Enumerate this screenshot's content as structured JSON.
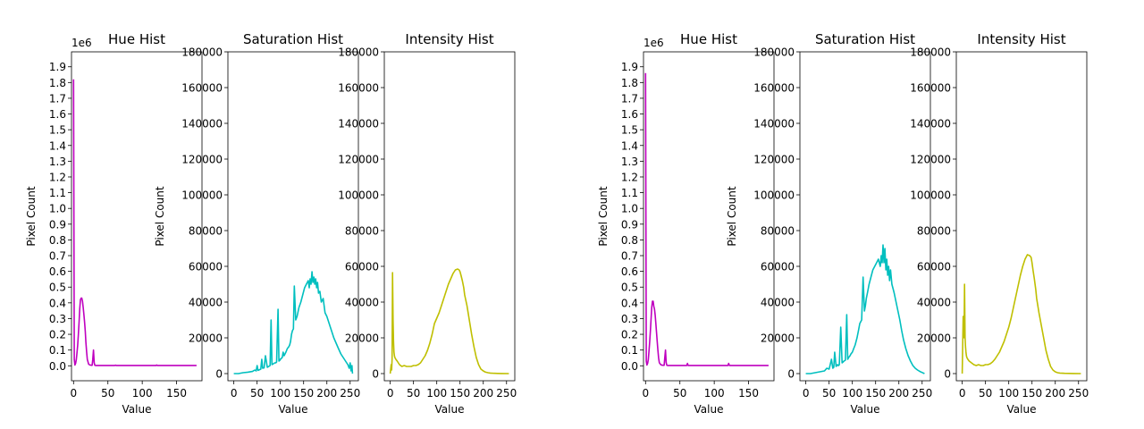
{
  "chart_data": [
    {
      "type": "line",
      "figure": "left",
      "title": "Hue Hist",
      "xlabel": "Value",
      "ylabel": "Pixel Count",
      "offset_text": "1e6",
      "xlim": [
        -3,
        187
      ],
      "ylim": [
        -0.095,
        1.995
      ],
      "xticks": [
        0,
        50,
        100,
        150
      ],
      "yticks": [
        0.0,
        0.1,
        0.2,
        0.3,
        0.4,
        0.5,
        0.6,
        0.7,
        0.8,
        0.9,
        1.0,
        1.1,
        1.2,
        1.3,
        1.4,
        1.5,
        1.6,
        1.7,
        1.8,
        1.9
      ],
      "ytick_labels": [
        "0.0",
        "0.1",
        "0.2",
        "0.3",
        "0.4",
        "0.5",
        "0.6",
        "0.7",
        "0.8",
        "0.9",
        "1.0",
        "1.1",
        "1.2",
        "1.3",
        "1.4",
        "1.5",
        "1.6",
        "1.7",
        "1.8",
        "1.9"
      ],
      "series": [
        {
          "color": "#bf00bf",
          "x": [
            0,
            1,
            2,
            3,
            4,
            5,
            6,
            7,
            8,
            9,
            10,
            11,
            12,
            13,
            14,
            15,
            16,
            17,
            18,
            19,
            20,
            22,
            24,
            26,
            27,
            28,
            29,
            30,
            31,
            32,
            35,
            40,
            60,
            61,
            62,
            80,
            100,
            120,
            121,
            122,
            150,
            179
          ],
          "y": [
            1.82,
            0.04,
            0.005,
            0.015,
            0.04,
            0.08,
            0.13,
            0.2,
            0.28,
            0.36,
            0.42,
            0.43,
            0.43,
            0.41,
            0.37,
            0.33,
            0.28,
            0.22,
            0.15,
            0.09,
            0.04,
            0.01,
            0.005,
            0.003,
            0.003,
            0.04,
            0.1,
            0.02,
            0.003,
            0.002,
            0.002,
            0.002,
            0.002,
            0.004,
            0.002,
            0.002,
            0.002,
            0.002,
            0.005,
            0.002,
            0.002,
            0.002
          ]
        }
      ]
    },
    {
      "type": "line",
      "figure": "left",
      "title": "Saturation Hist",
      "xlabel": "Value",
      "ylabel": "Pixel Count",
      "xlim": [
        -12.75,
        267.75
      ],
      "ylim": [
        -4000,
        180000
      ],
      "xticks": [
        0,
        50,
        100,
        150,
        200,
        250
      ],
      "yticks": [
        0,
        20000,
        40000,
        60000,
        80000,
        100000,
        120000,
        140000,
        160000,
        180000
      ],
      "ytick_labels": [
        "0",
        "20000",
        "40000",
        "60000",
        "80000",
        "100000",
        "120000",
        "140000",
        "160000",
        "180000"
      ],
      "series": [
        {
          "color": "#00bfbf",
          "x": [
            0,
            10,
            20,
            30,
            40,
            45,
            48,
            50,
            52,
            58,
            60,
            62,
            65,
            68,
            72,
            75,
            78,
            80,
            82,
            85,
            88,
            90,
            92,
            95,
            97,
            99,
            100,
            102,
            104,
            106,
            108,
            110,
            112,
            115,
            118,
            120,
            122,
            124,
            126,
            128,
            130,
            133,
            136,
            140,
            144,
            148,
            152,
            156,
            160,
            162,
            164,
            166,
            168,
            170,
            172,
            174,
            176,
            178,
            180,
            182,
            185,
            188,
            192,
            196,
            200,
            205,
            210,
            215,
            220,
            225,
            230,
            235,
            240,
            245,
            248,
            250,
            252,
            254,
            255
          ],
          "y": [
            0,
            0,
            500,
            800,
            1200,
            2000,
            1500,
            4500,
            1800,
            2500,
            8000,
            3000,
            3200,
            10000,
            3500,
            4000,
            4500,
            30000,
            5000,
            5500,
            6000,
            6000,
            6500,
            36000,
            7000,
            7500,
            8000,
            8500,
            9000,
            12000,
            10000,
            11000,
            12000,
            14000,
            15000,
            16000,
            18000,
            22000,
            24000,
            25000,
            49000,
            30000,
            32000,
            37000,
            40000,
            44000,
            48000,
            50000,
            52000,
            48000,
            53000,
            50000,
            57000,
            51000,
            54000,
            50000,
            53000,
            48000,
            51000,
            45000,
            46000,
            40000,
            42000,
            34000,
            32000,
            28000,
            24000,
            20000,
            17000,
            14000,
            11000,
            9000,
            7000,
            5000,
            3000,
            6000,
            1500,
            4500,
            0
          ]
        }
      ]
    },
    {
      "type": "line",
      "figure": "left",
      "title": "Intensity Hist",
      "xlabel": "Value",
      "xlim": [
        -12.75,
        267.75
      ],
      "ylim": [
        -4000,
        180000
      ],
      "xticks": [
        0,
        50,
        100,
        150,
        200,
        250
      ],
      "yticks": [
        0,
        20000,
        40000,
        60000,
        80000,
        100000,
        120000,
        140000,
        160000,
        180000
      ],
      "ytick_labels": [
        "0",
        "20000",
        "40000",
        "60000",
        "80000",
        "100000",
        "120000",
        "140000",
        "160000",
        "180000"
      ],
      "series": [
        {
          "color": "#bfbf00",
          "x": [
            0,
            2,
            3,
            4,
            5,
            6,
            7,
            8,
            9,
            10,
            12,
            15,
            20,
            25,
            30,
            35,
            40,
            45,
            50,
            55,
            60,
            65,
            70,
            75,
            80,
            85,
            90,
            95,
            100,
            105,
            110,
            115,
            120,
            125,
            130,
            135,
            140,
            145,
            148,
            150,
            152,
            155,
            158,
            160,
            165,
            170,
            175,
            180,
            185,
            190,
            195,
            200,
            205,
            210,
            215,
            220,
            230,
            240,
            255
          ],
          "y": [
            0,
            5000,
            2000,
            8000,
            56500,
            30000,
            18000,
            12000,
            10000,
            9000,
            8000,
            7000,
            5000,
            4000,
            4500,
            4000,
            4000,
            4000,
            4500,
            4500,
            5000,
            6000,
            8000,
            10000,
            13000,
            17000,
            22000,
            28000,
            31000,
            34000,
            38000,
            42000,
            46000,
            50000,
            53000,
            56000,
            58000,
            58500,
            58000,
            57000,
            55000,
            52000,
            48000,
            44000,
            38000,
            30000,
            22000,
            15000,
            9000,
            5000,
            2500,
            1500,
            800,
            500,
            300,
            200,
            100,
            50,
            0
          ]
        }
      ]
    },
    {
      "type": "line",
      "figure": "right",
      "title": "Hue Hist",
      "xlabel": "Value",
      "ylabel": "Pixel Count",
      "offset_text": "1e6",
      "xlim": [
        -3,
        187
      ],
      "ylim": [
        -0.095,
        1.995
      ],
      "xticks": [
        0,
        50,
        100,
        150
      ],
      "yticks": [
        0.0,
        0.1,
        0.2,
        0.3,
        0.4,
        0.5,
        0.6,
        0.7,
        0.8,
        0.9,
        1.0,
        1.1,
        1.2,
        1.3,
        1.4,
        1.5,
        1.6,
        1.7,
        1.8,
        1.9
      ],
      "ytick_labels": [
        "0.0",
        "0.1",
        "0.2",
        "0.3",
        "0.4",
        "0.5",
        "0.6",
        "0.7",
        "0.8",
        "0.9",
        "1.0",
        "1.1",
        "1.2",
        "1.3",
        "1.4",
        "1.5",
        "1.6",
        "1.7",
        "1.8",
        "1.9"
      ],
      "series": [
        {
          "color": "#bf00bf",
          "x": [
            0,
            1,
            2,
            3,
            4,
            5,
            6,
            7,
            8,
            9,
            10,
            11,
            12,
            13,
            14,
            15,
            16,
            17,
            18,
            19,
            20,
            22,
            24,
            26,
            27,
            28,
            29,
            30,
            31,
            32,
            35,
            40,
            60,
            61,
            62,
            80,
            100,
            120,
            121,
            122,
            150,
            179
          ],
          "y": [
            1.86,
            0.03,
            0.005,
            0.015,
            0.04,
            0.09,
            0.15,
            0.22,
            0.3,
            0.37,
            0.41,
            0.41,
            0.38,
            0.36,
            0.32,
            0.27,
            0.21,
            0.15,
            0.1,
            0.05,
            0.02,
            0.008,
            0.004,
            0.003,
            0.003,
            0.05,
            0.1,
            0.02,
            0.003,
            0.002,
            0.002,
            0.002,
            0.002,
            0.015,
            0.002,
            0.002,
            0.002,
            0.002,
            0.015,
            0.002,
            0.002,
            0.002
          ]
        }
      ]
    },
    {
      "type": "line",
      "figure": "right",
      "title": "Saturation Hist",
      "xlabel": "Value",
      "ylabel": "Pixel Count",
      "xlim": [
        -12.75,
        267.75
      ],
      "ylim": [
        -4000,
        180000
      ],
      "xticks": [
        0,
        50,
        100,
        150,
        200,
        250
      ],
      "yticks": [
        0,
        20000,
        40000,
        60000,
        80000,
        100000,
        120000,
        140000,
        160000,
        180000
      ],
      "ytick_labels": [
        "0",
        "20000",
        "40000",
        "60000",
        "80000",
        "100000",
        "120000",
        "140000",
        "160000",
        "180000"
      ],
      "series": [
        {
          "color": "#00bfbf",
          "x": [
            0,
            10,
            20,
            30,
            40,
            45,
            50,
            55,
            58,
            60,
            62,
            65,
            68,
            70,
            72,
            75,
            78,
            80,
            82,
            85,
            88,
            90,
            92,
            95,
            97,
            100,
            103,
            106,
            110,
            113,
            116,
            120,
            123,
            126,
            128,
            130,
            133,
            136,
            140,
            144,
            148,
            152,
            156,
            160,
            162,
            164,
            166,
            168,
            170,
            172,
            174,
            176,
            178,
            180,
            182,
            185,
            188,
            190,
            194,
            198,
            202,
            206,
            210,
            215,
            220,
            225,
            230,
            235,
            240,
            245,
            250,
            255
          ],
          "y": [
            0,
            0,
            500,
            1000,
            1500,
            3000,
            2500,
            8000,
            3000,
            3500,
            12000,
            4000,
            5000,
            4500,
            5000,
            26000,
            6000,
            6500,
            7000,
            7500,
            33000,
            8000,
            9000,
            10000,
            11000,
            12000,
            14000,
            16000,
            20000,
            24000,
            28000,
            30000,
            54000,
            35000,
            38000,
            42000,
            46000,
            50000,
            54000,
            58000,
            60000,
            62000,
            64000,
            60000,
            66000,
            62000,
            72000,
            62000,
            70000,
            58000,
            64000,
            55000,
            60000,
            52000,
            58000,
            50000,
            47000,
            45000,
            40000,
            35000,
            30000,
            24000,
            19000,
            14000,
            10000,
            7000,
            4500,
            3000,
            2000,
            1200,
            600,
            0
          ]
        }
      ]
    },
    {
      "type": "line",
      "figure": "right",
      "title": "Intensity Hist",
      "xlabel": "Value",
      "xlim": [
        -12.75,
        267.75
      ],
      "ylim": [
        -4000,
        180000
      ],
      "xticks": [
        0,
        50,
        100,
        150,
        200,
        250
      ],
      "yticks": [
        0,
        20000,
        40000,
        60000,
        80000,
        100000,
        120000,
        140000,
        160000,
        180000
      ],
      "ytick_labels": [
        "0",
        "20000",
        "40000",
        "60000",
        "80000",
        "100000",
        "120000",
        "140000",
        "160000",
        "180000"
      ],
      "series": [
        {
          "color": "#bfbf00",
          "x": [
            0,
            2,
            3,
            4,
            5,
            6,
            7,
            8,
            9,
            10,
            12,
            15,
            20,
            25,
            30,
            35,
            40,
            45,
            50,
            55,
            60,
            65,
            70,
            75,
            80,
            85,
            90,
            95,
            100,
            105,
            110,
            115,
            120,
            125,
            130,
            135,
            140,
            145,
            148,
            150,
            152,
            155,
            158,
            160,
            165,
            170,
            175,
            180,
            185,
            190,
            195,
            200,
            205,
            210,
            220,
            230,
            240,
            255
          ],
          "y": [
            0,
            32000,
            20000,
            22000,
            50000,
            20000,
            15000,
            12000,
            10000,
            9000,
            8000,
            7000,
            6000,
            5000,
            4500,
            5000,
            4500,
            4500,
            5000,
            5000,
            5500,
            6500,
            8000,
            10000,
            12000,
            15000,
            18000,
            22000,
            26000,
            31000,
            37000,
            43000,
            49000,
            55000,
            60000,
            64000,
            66500,
            66000,
            65000,
            62000,
            58000,
            53000,
            47000,
            42000,
            34000,
            27000,
            20000,
            13000,
            8000,
            4000,
            2000,
            1000,
            500,
            300,
            150,
            80,
            50,
            0
          ]
        }
      ]
    }
  ]
}
